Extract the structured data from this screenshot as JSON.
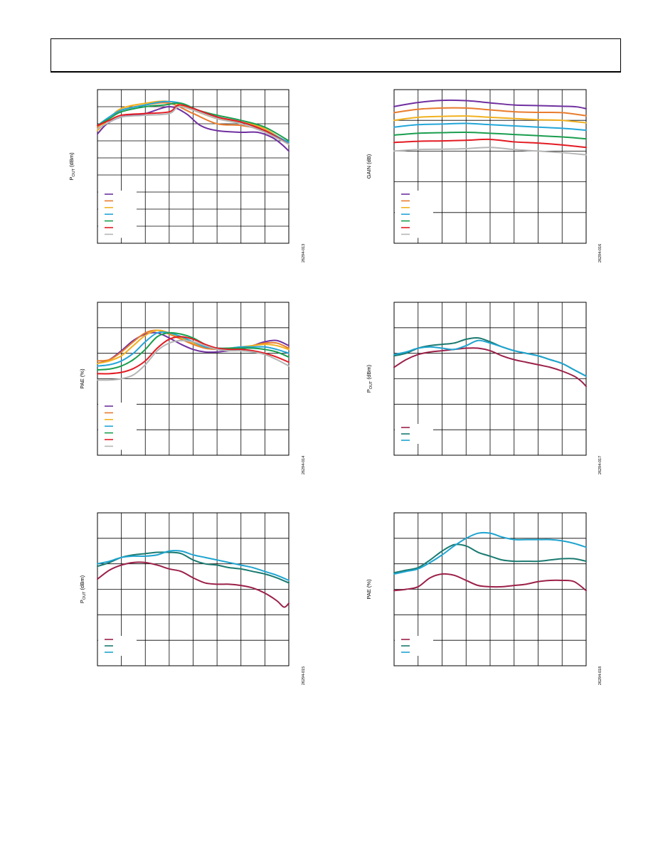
{
  "page": {
    "header_text": ""
  },
  "chart_data": [
    {
      "id": "c1",
      "type": "line",
      "ylabel_main": "P",
      "ylabel_sub": "OUT",
      "ylabel_tail": " (dBm)",
      "figure_code": "26294-013",
      "xlim": [
        0,
        8
      ],
      "ylim": [
        0,
        9
      ],
      "legend_colors": [
        "#7030a0",
        "#e97c2d",
        "#f2b01e",
        "#23a6d8",
        "#1a9e4e",
        "#e31b23",
        "#b5b5b5"
      ],
      "series": [
        {
          "color": "#7030a0",
          "x": [
            0,
            0.4,
            1,
            2,
            3,
            3.7,
            4.3,
            5,
            6,
            6.7,
            7.3,
            7.7,
            8
          ],
          "y": [
            6.4,
            7.0,
            7.4,
            7.6,
            8.0,
            7.6,
            6.9,
            6.6,
            6.5,
            6.5,
            6.2,
            5.8,
            5.4
          ]
        },
        {
          "color": "#e97c2d",
          "x": [
            0,
            0.5,
            1,
            2,
            3,
            4,
            5,
            6,
            7,
            8
          ],
          "y": [
            6.8,
            7.3,
            7.8,
            8.1,
            8.2,
            7.6,
            7.0,
            6.9,
            6.6,
            5.9
          ]
        },
        {
          "color": "#f2b01e",
          "x": [
            0,
            0.5,
            1,
            2,
            3,
            4,
            5,
            6,
            7,
            8
          ],
          "y": [
            6.6,
            7.3,
            7.9,
            8.2,
            8.3,
            7.8,
            7.3,
            7.1,
            6.7,
            5.8
          ]
        },
        {
          "color": "#23a6d8",
          "x": [
            0,
            0.5,
            1,
            2,
            2.8,
            3.5,
            4.2,
            5,
            6,
            7,
            8
          ],
          "y": [
            6.9,
            7.4,
            7.8,
            8.1,
            8.3,
            8.2,
            7.8,
            7.4,
            7.1,
            6.6,
            5.9
          ]
        },
        {
          "color": "#1a9e4e",
          "x": [
            0,
            0.5,
            1,
            2,
            2.8,
            3.5,
            4.2,
            5,
            6,
            7,
            8
          ],
          "y": [
            6.9,
            7.3,
            7.7,
            8.0,
            8.1,
            8.2,
            7.8,
            7.5,
            7.2,
            6.8,
            6.0
          ]
        },
        {
          "color": "#e31b23",
          "x": [
            0,
            0.5,
            1,
            2,
            3,
            3.4,
            4,
            5,
            6,
            7,
            8
          ],
          "y": [
            6.9,
            7.2,
            7.5,
            7.6,
            7.7,
            8.1,
            7.9,
            7.4,
            7.1,
            6.6,
            5.8
          ]
        },
        {
          "color": "#b5b5b5",
          "x": [
            0,
            0.5,
            1,
            2,
            3,
            3.4,
            4,
            5,
            6,
            7,
            8
          ],
          "y": [
            6.7,
            7.1,
            7.4,
            7.5,
            7.6,
            8.0,
            7.8,
            7.3,
            7.0,
            6.5,
            5.8
          ]
        }
      ]
    },
    {
      "id": "c2",
      "type": "line",
      "ylabel_main": "GAIN (dB)",
      "ylabel_sub": "",
      "ylabel_tail": "",
      "figure_code": "26294-016",
      "xlim": [
        0,
        8
      ],
      "ylim": [
        0,
        5
      ],
      "legend_colors": [
        "#7030a0",
        "#e97c2d",
        "#f2b01e",
        "#23a6d8",
        "#1a9e4e",
        "#e31b23",
        "#b5b5b5"
      ],
      "series": [
        {
          "color": "#7030a0",
          "x": [
            0,
            1,
            2,
            3,
            4,
            5,
            6,
            7,
            7.6,
            8
          ],
          "y": [
            4.45,
            4.58,
            4.65,
            4.64,
            4.57,
            4.5,
            4.48,
            4.46,
            4.44,
            4.38
          ]
        },
        {
          "color": "#e97c2d",
          "x": [
            0,
            1,
            2,
            3,
            4,
            5,
            6,
            7,
            8
          ],
          "y": [
            4.25,
            4.36,
            4.4,
            4.4,
            4.34,
            4.28,
            4.26,
            4.25,
            4.15
          ]
        },
        {
          "color": "#f2b01e",
          "x": [
            0,
            1,
            2,
            3,
            4,
            5,
            6,
            7,
            8
          ],
          "y": [
            4.0,
            4.1,
            4.13,
            4.14,
            4.1,
            4.06,
            4.02,
            4.0,
            3.92
          ]
        },
        {
          "color": "#23a6d8",
          "x": [
            0,
            1,
            2,
            3,
            4,
            5,
            6,
            7,
            8
          ],
          "y": [
            3.78,
            3.86,
            3.88,
            3.9,
            3.86,
            3.82,
            3.78,
            3.74,
            3.68
          ]
        },
        {
          "color": "#1a9e4e",
          "x": [
            0,
            1,
            2,
            3,
            4,
            5,
            6,
            7,
            8
          ],
          "y": [
            3.52,
            3.58,
            3.6,
            3.61,
            3.58,
            3.54,
            3.5,
            3.46,
            3.4
          ]
        },
        {
          "color": "#e31b23",
          "x": [
            0,
            1,
            2,
            3,
            4,
            5,
            6,
            7,
            8
          ],
          "y": [
            3.28,
            3.32,
            3.33,
            3.35,
            3.38,
            3.3,
            3.26,
            3.2,
            3.12
          ]
        },
        {
          "color": "#b5b5b5",
          "x": [
            0,
            1,
            2,
            3,
            4,
            5,
            6,
            7,
            8
          ],
          "y": [
            3.0,
            3.05,
            3.06,
            3.08,
            3.12,
            3.05,
            3.0,
            2.95,
            2.88
          ]
        }
      ]
    },
    {
      "id": "c3",
      "type": "line",
      "ylabel_main": "PAE (%)",
      "ylabel_sub": "",
      "ylabel_tail": "",
      "figure_code": "26294-014",
      "xlim": [
        0,
        8
      ],
      "ylim": [
        0,
        6
      ],
      "legend_colors": [
        "#7030a0",
        "#e97c2d",
        "#f2b01e",
        "#23a6d8",
        "#1a9e4e",
        "#e31b23",
        "#b5b5b5"
      ],
      "series": [
        {
          "color": "#7030a0",
          "x": [
            0,
            0.5,
            1,
            1.5,
            2,
            2.5,
            3,
            3.5,
            4,
            4.5,
            5,
            5.5,
            6,
            6.5,
            7,
            7.5,
            8
          ],
          "y": [
            3.6,
            3.75,
            4.1,
            4.5,
            4.75,
            4.8,
            4.6,
            4.35,
            4.15,
            4.05,
            4.05,
            4.1,
            4.15,
            4.3,
            4.45,
            4.5,
            4.3
          ]
        },
        {
          "color": "#e97c2d",
          "x": [
            0,
            0.5,
            1,
            1.5,
            2,
            2.5,
            3,
            3.5,
            4,
            4.5,
            5,
            5.5,
            6,
            6.5,
            7,
            7.5,
            8
          ],
          "y": [
            3.7,
            3.75,
            4.05,
            4.45,
            4.8,
            4.9,
            4.75,
            4.55,
            4.35,
            4.2,
            4.15,
            4.15,
            4.2,
            4.3,
            4.4,
            4.4,
            4.2
          ]
        },
        {
          "color": "#f2b01e",
          "x": [
            0,
            0.5,
            1,
            1.5,
            2,
            2.5,
            3,
            3.5,
            4,
            4.5,
            5,
            5.5,
            6,
            6.5,
            7,
            7.5,
            8
          ],
          "y": [
            3.6,
            3.7,
            3.9,
            4.3,
            4.7,
            4.9,
            4.8,
            4.6,
            4.4,
            4.25,
            4.2,
            4.2,
            4.25,
            4.3,
            4.35,
            4.3,
            4.15
          ]
        },
        {
          "color": "#23a6d8",
          "x": [
            0,
            0.5,
            1,
            1.5,
            2,
            2.5,
            3,
            3.5,
            4,
            4.5,
            5,
            5.5,
            6,
            6.5,
            7,
            7.5,
            8
          ],
          "y": [
            3.5,
            3.55,
            3.7,
            4.0,
            4.45,
            4.8,
            4.8,
            4.65,
            4.45,
            4.25,
            4.2,
            4.2,
            4.25,
            4.25,
            4.25,
            4.15,
            4.0
          ]
        },
        {
          "color": "#1a9e4e",
          "x": [
            0,
            0.5,
            1,
            1.5,
            2,
            2.5,
            3,
            3.5,
            4,
            4.5,
            5,
            5.5,
            6,
            6.5,
            7,
            7.5,
            8
          ],
          "y": [
            3.35,
            3.38,
            3.5,
            3.75,
            4.15,
            4.65,
            4.8,
            4.75,
            4.6,
            4.35,
            4.2,
            4.2,
            4.2,
            4.2,
            4.15,
            4.05,
            3.85
          ]
        },
        {
          "color": "#e31b23",
          "x": [
            0,
            0.5,
            1,
            1.5,
            2,
            2.5,
            3,
            3.5,
            4,
            4.5,
            5,
            5.5,
            6,
            6.5,
            7,
            7.5,
            8
          ],
          "y": [
            3.2,
            3.2,
            3.25,
            3.4,
            3.7,
            4.2,
            4.55,
            4.65,
            4.55,
            4.35,
            4.2,
            4.15,
            4.15,
            4.1,
            4.0,
            3.85,
            3.65
          ]
        },
        {
          "color": "#b5b5b5",
          "x": [
            0,
            0.5,
            1,
            1.5,
            2,
            2.5,
            3,
            3.5,
            4,
            4.5,
            5,
            5.5,
            6,
            6.5,
            7,
            7.5,
            8
          ],
          "y": [
            2.95,
            2.95,
            3.0,
            3.15,
            3.55,
            4.1,
            4.4,
            4.5,
            4.45,
            4.3,
            4.15,
            4.1,
            4.1,
            4.05,
            3.95,
            3.75,
            3.5
          ]
        }
      ]
    },
    {
      "id": "c4",
      "type": "line",
      "ylabel_main": "P",
      "ylabel_sub": "OUT",
      "ylabel_tail": " (dBm)",
      "figure_code": "26294-017",
      "xlim": [
        0,
        8
      ],
      "ylim": [
        0,
        6
      ],
      "legend_colors": [
        "#9b2048",
        "#1a7a70",
        "#1ea4d0"
      ],
      "series": [
        {
          "color": "#9b2048",
          "x": [
            0,
            0.5,
            1,
            1.5,
            2,
            2.5,
            3,
            3.5,
            4,
            4.5,
            5,
            5.5,
            6,
            6.5,
            7,
            7.5,
            7.8,
            8
          ],
          "y": [
            3.45,
            3.75,
            3.95,
            4.05,
            4.1,
            4.15,
            4.2,
            4.2,
            4.1,
            3.9,
            3.75,
            3.65,
            3.55,
            3.45,
            3.3,
            3.1,
            2.9,
            2.7
          ]
        },
        {
          "color": "#1a7a70",
          "x": [
            0,
            0.5,
            1,
            1.5,
            2,
            2.5,
            3,
            3.5,
            4,
            4.5,
            5,
            5.5,
            6,
            6.5,
            7,
            7.5,
            8
          ],
          "y": [
            3.9,
            4.0,
            4.2,
            4.3,
            4.35,
            4.4,
            4.55,
            4.6,
            4.45,
            4.25,
            4.1,
            4.0,
            3.9,
            3.75,
            3.6,
            3.35,
            3.1
          ]
        },
        {
          "color": "#1ea4d0",
          "x": [
            0,
            0.5,
            1,
            1.5,
            2,
            2.5,
            3,
            3.5,
            4,
            4.5,
            5,
            5.5,
            6,
            6.5,
            7,
            7.5,
            8
          ],
          "y": [
            3.95,
            4.05,
            4.2,
            4.25,
            4.2,
            4.15,
            4.3,
            4.5,
            4.4,
            4.25,
            4.1,
            4.0,
            3.9,
            3.75,
            3.6,
            3.35,
            3.1
          ]
        }
      ]
    },
    {
      "id": "c5",
      "type": "line",
      "ylabel_main": "P",
      "ylabel_sub": "OUT",
      "ylabel_tail": " (dBm)",
      "figure_code": "26294-015",
      "xlim": [
        0,
        8
      ],
      "ylim": [
        0,
        6
      ],
      "legend_colors": [
        "#9b2048",
        "#1a7a70",
        "#1ea4d0"
      ],
      "series": [
        {
          "color": "#9b2048",
          "x": [
            0,
            0.5,
            1,
            1.5,
            2,
            2.5,
            3,
            3.5,
            4,
            4.5,
            5,
            5.5,
            6,
            6.5,
            7,
            7.5,
            7.8,
            8
          ],
          "y": [
            3.4,
            3.75,
            3.95,
            4.05,
            4.05,
            3.95,
            3.8,
            3.7,
            3.45,
            3.25,
            3.2,
            3.2,
            3.15,
            3.05,
            2.85,
            2.55,
            2.3,
            2.45
          ]
        },
        {
          "color": "#1a7a70",
          "x": [
            0,
            0.5,
            1,
            1.5,
            2,
            2.5,
            3,
            3.5,
            4,
            4.5,
            5,
            5.5,
            6,
            6.5,
            7,
            7.5,
            8
          ],
          "y": [
            3.9,
            4.05,
            4.25,
            4.35,
            4.4,
            4.45,
            4.45,
            4.4,
            4.15,
            4.0,
            3.95,
            3.85,
            3.8,
            3.7,
            3.6,
            3.45,
            3.25
          ]
        },
        {
          "color": "#1ea4d0",
          "x": [
            0,
            0.5,
            1,
            1.5,
            2,
            2.5,
            3,
            3.5,
            4,
            4.5,
            5,
            5.5,
            6,
            6.5,
            7,
            7.5,
            8
          ],
          "y": [
            4.0,
            4.1,
            4.25,
            4.3,
            4.3,
            4.35,
            4.5,
            4.5,
            4.35,
            4.25,
            4.15,
            4.05,
            3.95,
            3.85,
            3.7,
            3.55,
            3.35
          ]
        }
      ]
    },
    {
      "id": "c6",
      "type": "line",
      "ylabel_main": "PAE (%)",
      "ylabel_sub": "",
      "ylabel_tail": "",
      "figure_code": "26294-018",
      "xlim": [
        0,
        8
      ],
      "ylim": [
        0,
        6
      ],
      "legend_colors": [
        "#9b2048",
        "#1a7a70",
        "#1ea4d0"
      ],
      "series": [
        {
          "color": "#9b2048",
          "x": [
            0,
            0.5,
            1,
            1.5,
            2,
            2.5,
            3,
            3.5,
            4,
            4.5,
            5,
            5.5,
            6,
            6.5,
            7,
            7.5,
            8
          ],
          "y": [
            2.95,
            3.0,
            3.1,
            3.45,
            3.6,
            3.55,
            3.35,
            3.15,
            3.1,
            3.1,
            3.15,
            3.2,
            3.3,
            3.35,
            3.35,
            3.3,
            2.95
          ]
        },
        {
          "color": "#1a7a70",
          "x": [
            0,
            0.5,
            1,
            1.5,
            2,
            2.5,
            3,
            3.5,
            4,
            4.5,
            5,
            5.5,
            6,
            6.5,
            7,
            7.5,
            8
          ],
          "y": [
            3.65,
            3.75,
            3.85,
            4.15,
            4.5,
            4.75,
            4.7,
            4.45,
            4.3,
            4.15,
            4.1,
            4.1,
            4.1,
            4.15,
            4.2,
            4.2,
            4.1
          ]
        },
        {
          "color": "#1ea4d0",
          "x": [
            0,
            0.5,
            1,
            1.5,
            2,
            2.5,
            3,
            3.5,
            4,
            4.5,
            5,
            5.5,
            6,
            6.5,
            7,
            7.5,
            8
          ],
          "y": [
            3.6,
            3.7,
            3.8,
            4.05,
            4.35,
            4.7,
            5.0,
            5.2,
            5.2,
            5.05,
            4.95,
            4.95,
            4.95,
            4.95,
            4.9,
            4.8,
            4.65
          ]
        }
      ]
    }
  ]
}
